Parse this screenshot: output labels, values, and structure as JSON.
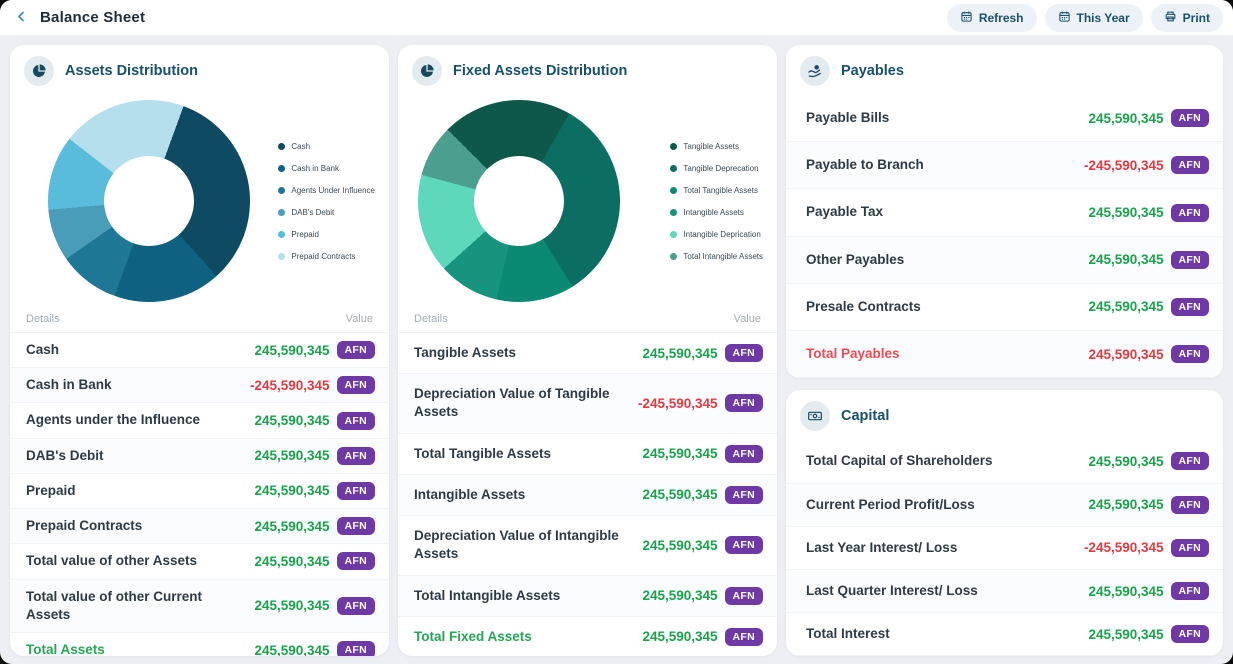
{
  "topbar": {
    "title": "Balance Sheet",
    "buttons": [
      {
        "label": "Refresh",
        "icon": "calendar-icon"
      },
      {
        "label": "This Year",
        "icon": "calendar-icon"
      },
      {
        "label": "Print",
        "icon": "printer-icon"
      }
    ]
  },
  "currency": "AFN",
  "colors": {
    "green": "#17A34A",
    "red": "#E5393F",
    "badge_purple": "#6F39A5",
    "accent_teal": "#1B506B",
    "total_green": "#27A657",
    "total_red": "#EF4B52",
    "page_bg": "#EDEFF4",
    "card_bg": "#FFFFFF"
  },
  "cards": {
    "assets": {
      "title": "Assets Distribution",
      "headers": {
        "details": "Details",
        "value": "Value"
      },
      "rows": [
        {
          "label": "Cash",
          "value": "245,590,345"
        },
        {
          "label": "Cash in Bank",
          "value": "-245,590,345"
        },
        {
          "label": "Agents under the Influence",
          "value": "245,590,345"
        },
        {
          "label": "DAB's Debit",
          "value": "245,590,345"
        },
        {
          "label": "Prepaid",
          "value": "245,590,345"
        },
        {
          "label": "Prepaid Contracts",
          "value": "245,590,345"
        },
        {
          "label": "Total value of other Assets",
          "value": "245,590,345"
        },
        {
          "label": "Total value of other Current Assets",
          "value": "245,590,345"
        },
        {
          "label": "Total Assets",
          "value": "245,590,345",
          "total": "green"
        }
      ]
    },
    "fixed": {
      "title": "Fixed Assets Distribution",
      "headers": {
        "details": "Details",
        "value": "Value"
      },
      "rows": [
        {
          "label": "Tangible Assets",
          "value": "245,590,345"
        },
        {
          "label": "Depreciation Value of Tangible Assets",
          "value": "-245,590,345"
        },
        {
          "label": "Total Tangible Assets",
          "value": "245,590,345"
        },
        {
          "label": "Intangible Assets",
          "value": "245,590,345"
        },
        {
          "label": "Depreciation Value of Intangible Assets",
          "value": "245,590,345"
        },
        {
          "label": "Total Intangible Assets",
          "value": "245,590,345"
        },
        {
          "label": "Total Fixed Assets",
          "value": "245,590,345",
          "total": "green"
        }
      ]
    },
    "payables": {
      "title": "Payables",
      "rows": [
        {
          "label": "Payable Bills",
          "value": "245,590,345"
        },
        {
          "label": "Payable to Branch",
          "value": "-245,590,345"
        },
        {
          "label": "Payable Tax",
          "value": "245,590,345"
        },
        {
          "label": "Other Payables",
          "value": "245,590,345"
        },
        {
          "label": "Presale Contracts",
          "value": "245,590,345"
        },
        {
          "label": "Total Payables",
          "value": "245,590,345",
          "total": "red"
        }
      ]
    },
    "capital": {
      "title": "Capital",
      "rows": [
        {
          "label": "Total Capital of Shareholders",
          "value": "245,590,345"
        },
        {
          "label": "Current Period Profit/Loss",
          "value": "245,590,345"
        },
        {
          "label": "Last Year Interest/ Loss",
          "value": "-245,590,345"
        },
        {
          "label": "Last Quarter Interest/ Loss",
          "value": "245,590,345"
        },
        {
          "label": "Total Interest",
          "value": "245,590,345"
        }
      ]
    }
  },
  "chart_data": [
    {
      "type": "pie",
      "title": "Assets Distribution",
      "donut_inner_radius_pct": 45,
      "start_angle_deg": 20,
      "legend_position": "right",
      "segments": [
        {
          "name": "Cash",
          "color": "#0E4A61",
          "sweep_deg": 118,
          "approx_pct": 32.8
        },
        {
          "name": "Cash in Bank",
          "color": "#0F6181",
          "sweep_deg": 62,
          "approx_pct": 17.2
        },
        {
          "name": "Agents Under Influence",
          "color": "#1E7795",
          "sweep_deg": 35,
          "approx_pct": 9.7
        },
        {
          "name": "DAB's Debit",
          "color": "#4A9DB9",
          "sweep_deg": 30,
          "approx_pct": 8.3
        },
        {
          "name": "Prepaid",
          "color": "#5ABCDB",
          "sweep_deg": 43,
          "approx_pct": 11.9
        },
        {
          "name": "Prepaid Contracts",
          "color": "#B5DFEC",
          "sweep_deg": 72,
          "approx_pct": 20.0
        }
      ]
    },
    {
      "type": "pie",
      "title": "Fixed Assets Distribution",
      "donut_inner_radius_pct": 45,
      "start_angle_deg": -45,
      "legend_position": "right",
      "segments": [
        {
          "name": "Tangible Assets",
          "color": "#0E584A",
          "sweep_deg": 75,
          "approx_pct": 20.8
        },
        {
          "name": "Tangible Deprecation",
          "color": "#0C6E62",
          "sweep_deg": 118,
          "approx_pct": 32.8
        },
        {
          "name": "Total Tangible Assets",
          "color": "#0A8A73",
          "sweep_deg": 45,
          "approx_pct": 12.5
        },
        {
          "name": "Intangible Assets",
          "color": "#17947E",
          "sweep_deg": 35,
          "approx_pct": 9.7
        },
        {
          "name": "Intangible Deprication",
          "color": "#5ED8BA",
          "sweep_deg": 57,
          "approx_pct": 15.8
        },
        {
          "name": "Total Intangible Assets",
          "color": "#4C9E8E",
          "sweep_deg": 30,
          "approx_pct": 8.3
        }
      ]
    }
  ]
}
